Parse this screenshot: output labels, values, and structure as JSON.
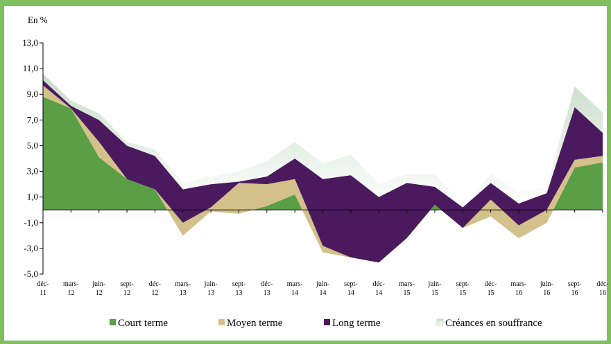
{
  "chart_data": {
    "type": "area",
    "stacked": true,
    "ylabel": "En %",
    "categories": [
      "déc-11",
      "mars-12",
      "juin-12",
      "sept-12",
      "déc-12",
      "mars-13",
      "juin-13",
      "sept-13",
      "déc-13",
      "mars-14",
      "juin-14",
      "sept-14",
      "déc-14",
      "mars-15",
      "juin-15",
      "sept-15",
      "déc-15",
      "mars-16",
      "juin-16",
      "sept-16",
      "déc-16"
    ],
    "series": [
      {
        "name": "Court terme",
        "color": "#5a9e46",
        "values": [
          8.8,
          7.9,
          4.1,
          2.4,
          1.6,
          -2.0,
          -0.1,
          -0.3,
          0.3,
          1.2,
          -3.3,
          -3.7,
          -4.1,
          -2.2,
          0.4,
          -1.4,
          -0.5,
          -2.2,
          -1.0,
          3.3,
          3.7
        ]
      },
      {
        "name": "Moyen terme",
        "color": "#d4c08a",
        "values": [
          0.9,
          0.0,
          1.2,
          0.0,
          0.0,
          1.0,
          0.3,
          2.4,
          1.7,
          1.2,
          0.5,
          0.0,
          0.0,
          0.0,
          0.0,
          0.0,
          1.3,
          1.0,
          1.0,
          0.6,
          0.5
        ]
      },
      {
        "name": "Long terme",
        "color": "#4b1a5e",
        "values": [
          0.4,
          0.2,
          1.7,
          2.6,
          2.6,
          2.6,
          1.8,
          0.1,
          0.6,
          1.6,
          5.2,
          6.4,
          5.1,
          4.3,
          1.4,
          1.6,
          1.3,
          1.7,
          1.3,
          4.1,
          1.8
        ]
      },
      {
        "name": "Créances en souffrance",
        "color": "#c8dcc8",
        "values": [
          0.5,
          0.4,
          0.5,
          0.3,
          0.5,
          0.5,
          0.6,
          0.8,
          1.2,
          1.3,
          1.2,
          1.6,
          1.0,
          0.7,
          1.0,
          0.2,
          0.7,
          0.9,
          0.5,
          1.6,
          1.6
        ]
      }
    ],
    "ylim": [
      -5,
      13
    ],
    "yticks": [
      {
        "value": -5,
        "label": "-5,0"
      },
      {
        "value": -3,
        "label": "-3,0"
      },
      {
        "value": -1,
        "label": "-1,0"
      },
      {
        "value": 1,
        "label": "1,0"
      },
      {
        "value": 3,
        "label": "3,0"
      },
      {
        "value": 5,
        "label": "5,0"
      },
      {
        "value": 7,
        "label": "7,0"
      },
      {
        "value": 9,
        "label": "9,0"
      },
      {
        "value": 11,
        "label": "11,0"
      },
      {
        "value": 13,
        "label": "13,0"
      }
    ],
    "legend": "bottom"
  }
}
